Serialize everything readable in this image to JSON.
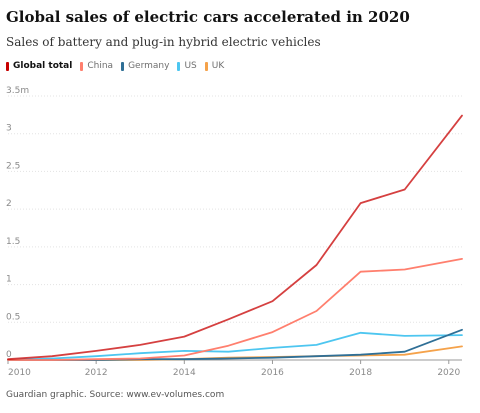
{
  "title": "Global sales of electric cars accelerated in 2020",
  "subtitle": "Sales of battery and plug-in hybrid electric vehicles",
  "source": "Guardian graphic. Source: www.ev-volumes.com",
  "chart_data": {
    "type": "line",
    "title": "Global sales of electric cars accelerated in 2020",
    "subtitle": "Sales of battery and plug-in hybrid electric vehicles",
    "xlabel": "",
    "ylabel": "",
    "x": [
      2010,
      2011,
      2012,
      2013,
      2014,
      2015,
      2016,
      2017,
      2018,
      2019,
      2020
    ],
    "xlim": [
      2010,
      2020.3
    ],
    "ylim": [
      0,
      3.5
    ],
    "x_ticks": [
      2010,
      2012,
      2014,
      2016,
      2018,
      2020
    ],
    "x_tick_labels": [
      "2010",
      "2012",
      "2014",
      "2016",
      "2018",
      "2020"
    ],
    "y_ticks": [
      0,
      0.5,
      1,
      1.5,
      2,
      2.5,
      3,
      3.5
    ],
    "y_tick_labels": [
      "0",
      "0.5",
      "1",
      "1.5",
      "2",
      "2.5",
      "3",
      "3.5m"
    ],
    "grid": true,
    "legend_position": "top-left",
    "series": [
      {
        "name": "Global total",
        "color": "#c70000",
        "x": [
          2010,
          2011,
          2012,
          2013,
          2014,
          2015,
          2016,
          2017,
          2018,
          2019,
          2020.3
        ],
        "values": [
          0.01,
          0.05,
          0.12,
          0.2,
          0.31,
          0.54,
          0.78,
          1.26,
          2.08,
          2.26,
          3.24
        ]
      },
      {
        "name": "China",
        "color": "#ff7f6e",
        "x": [
          2010,
          2011,
          2012,
          2013,
          2014,
          2015,
          2016,
          2017,
          2018,
          2019,
          2020.3
        ],
        "values": [
          0.0,
          0.0,
          0.01,
          0.02,
          0.06,
          0.19,
          0.37,
          0.65,
          1.17,
          1.2,
          1.34
        ]
      },
      {
        "name": "Germany",
        "color": "#2f6f96",
        "x": [
          2010,
          2011,
          2012,
          2013,
          2014,
          2015,
          2016,
          2017,
          2018,
          2019,
          2020.3
        ],
        "values": [
          0.0,
          0.0,
          0.0,
          0.01,
          0.01,
          0.02,
          0.03,
          0.05,
          0.07,
          0.11,
          0.4
        ]
      },
      {
        "name": "US",
        "color": "#4dc6f0",
        "x": [
          2010,
          2011,
          2012,
          2013,
          2014,
          2015,
          2016,
          2017,
          2018,
          2019,
          2020.3
        ],
        "values": [
          0.0,
          0.02,
          0.05,
          0.09,
          0.12,
          0.11,
          0.16,
          0.2,
          0.36,
          0.32,
          0.33
        ]
      },
      {
        "name": "UK",
        "color": "#f5a24a",
        "x": [
          2010,
          2011,
          2012,
          2013,
          2014,
          2015,
          2016,
          2017,
          2018,
          2019,
          2020.3
        ],
        "values": [
          0.0,
          0.0,
          0.0,
          0.0,
          0.01,
          0.03,
          0.04,
          0.05,
          0.06,
          0.07,
          0.18
        ]
      }
    ]
  }
}
